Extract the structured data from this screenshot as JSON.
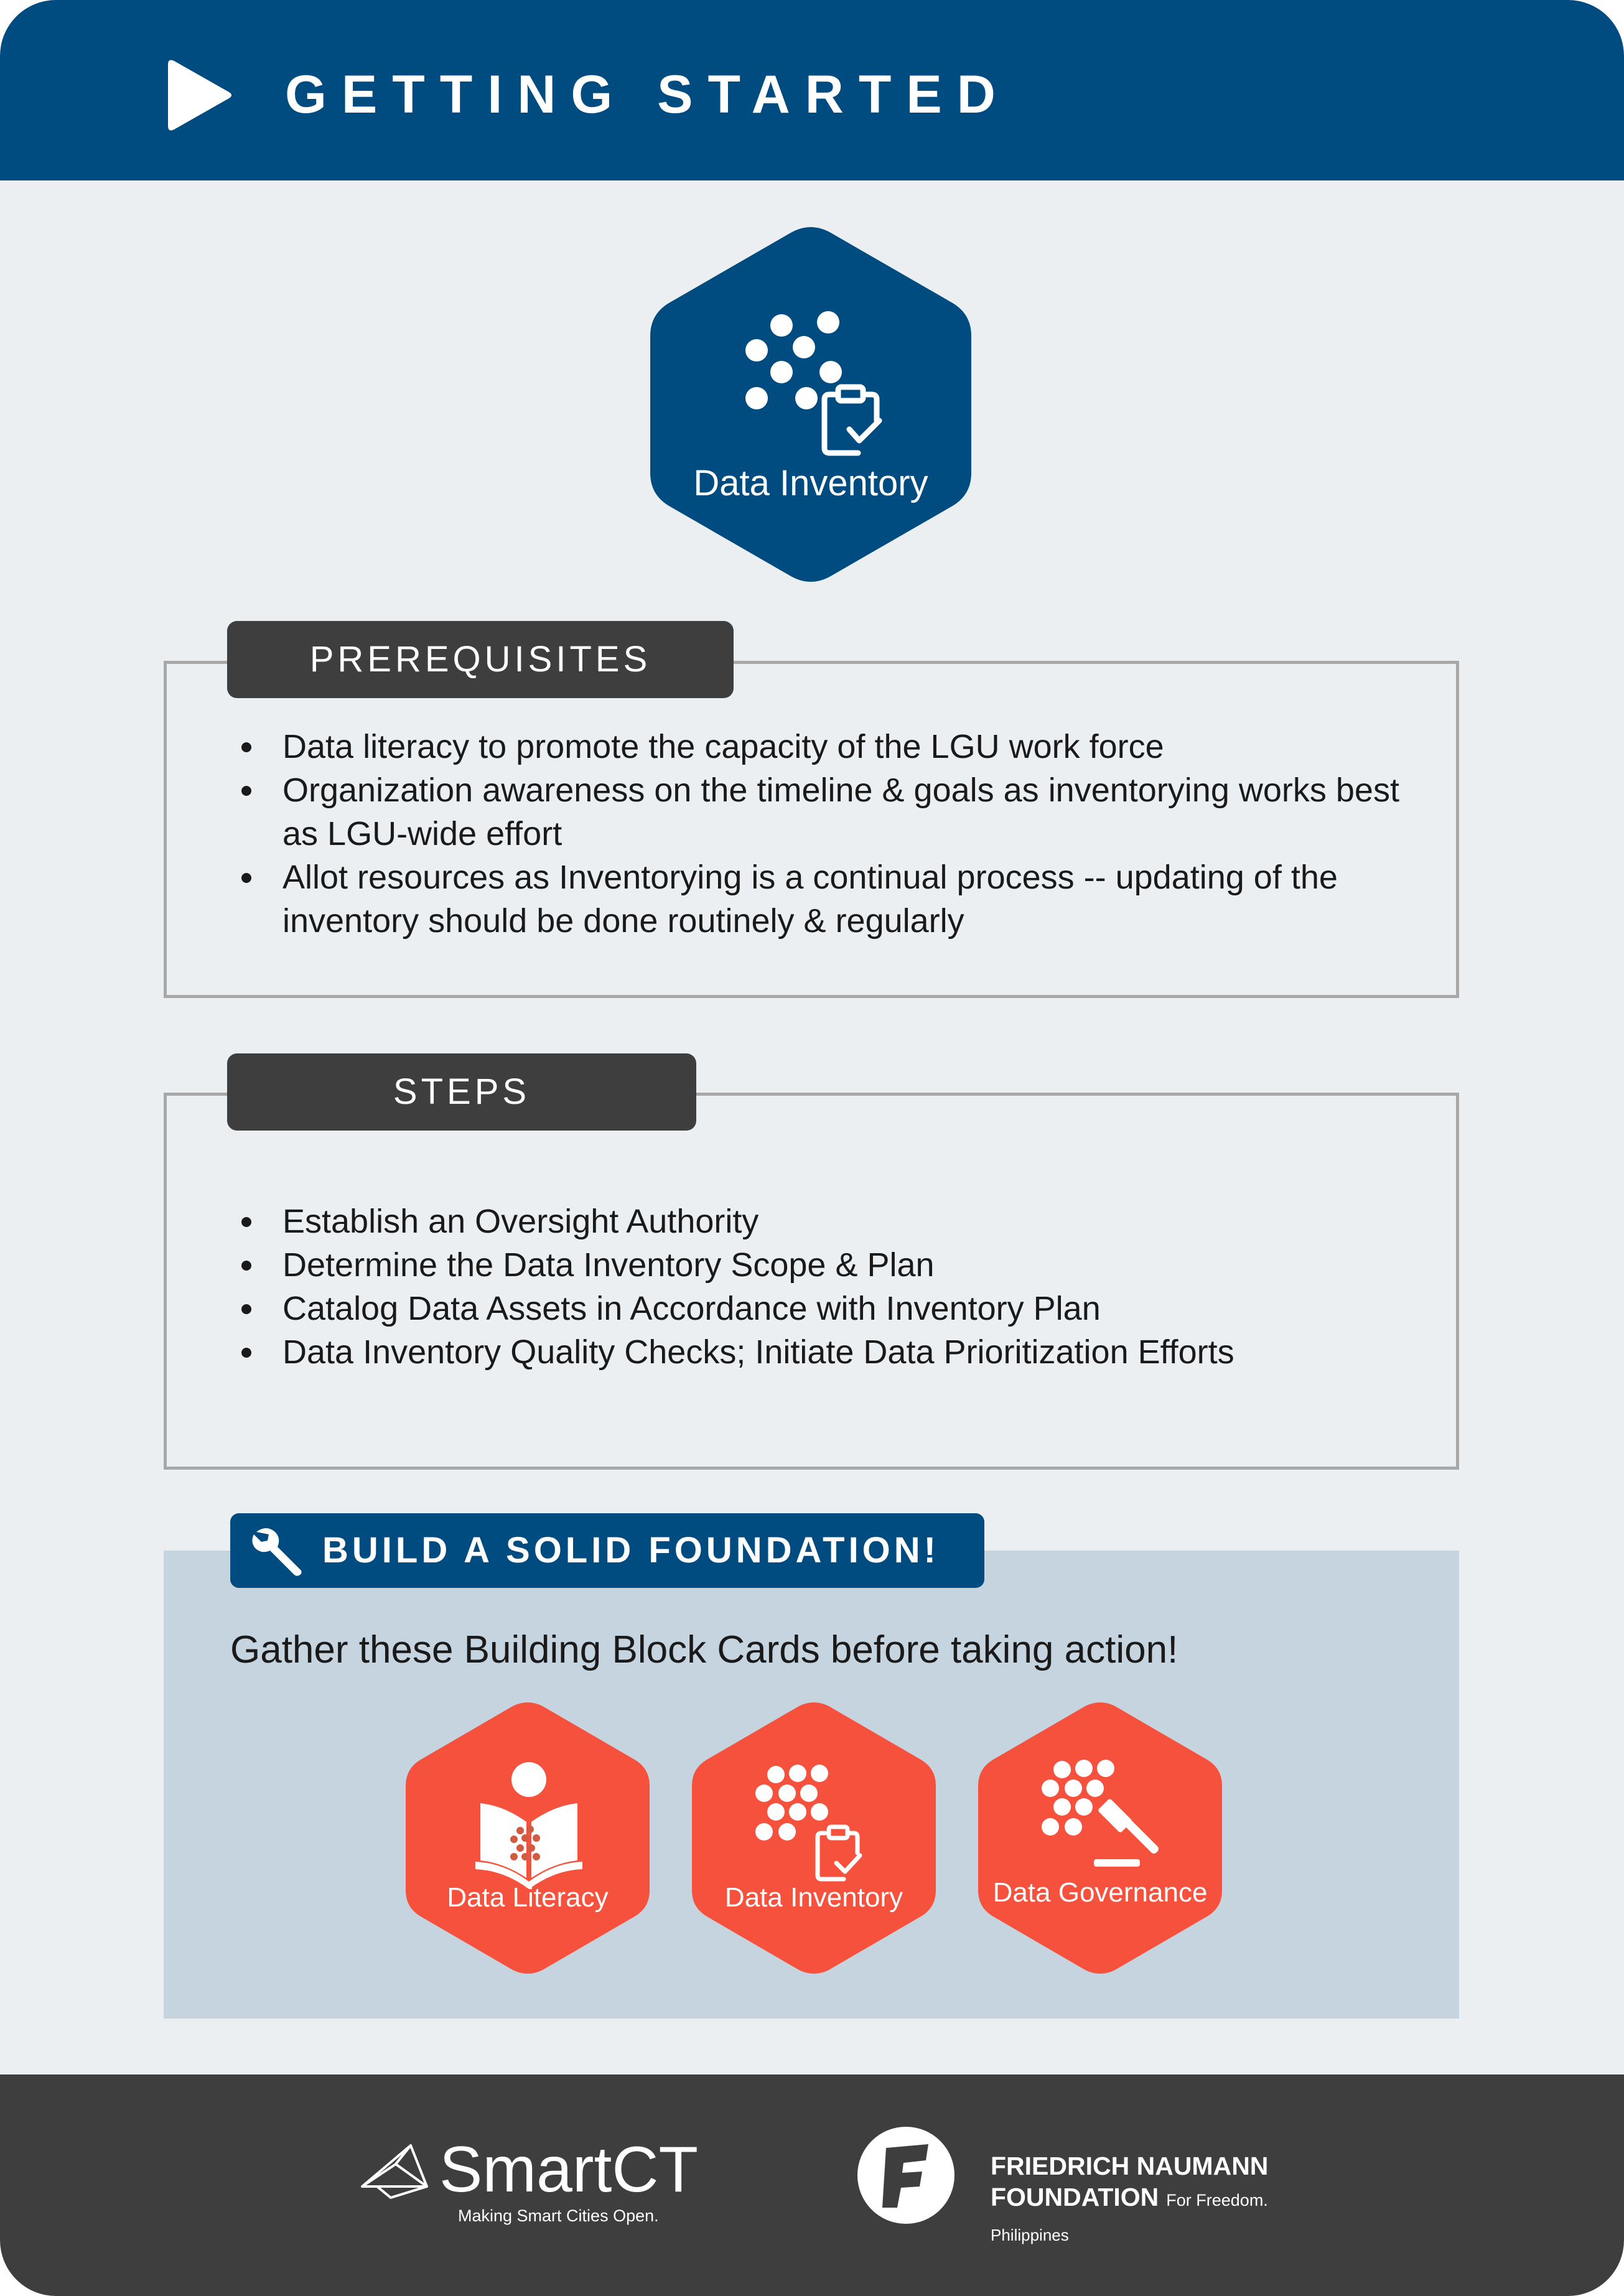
{
  "header": {
    "title": "GETTING STARTED",
    "icon": "play-icon"
  },
  "main_card": {
    "label": "Data Inventory",
    "icon": "data-inventory-icon",
    "color": "#004b80"
  },
  "prerequisites": {
    "title": "PREREQUISITES",
    "items": [
      "Data literacy to promote the capacity of the LGU work force",
      "Organization awareness on the timeline & goals as inventorying works best as LGU-wide effort",
      "Allot resources as Inventorying is a continual process -- updating of the inventory should be done routinely & regularly"
    ]
  },
  "steps": {
    "title": "STEPS",
    "items": [
      "Establish an Oversight Authority",
      "Determine the Data Inventory Scope & Plan",
      "Catalog Data Assets in Accordance with Inventory Plan",
      "Data Inventory Quality Checks; Initiate Data Prioritization Efforts"
    ]
  },
  "foundation": {
    "title": "BUILD A SOLID FOUNDATION!",
    "icon": "wrench-icon",
    "subtitle": "Gather these Building Block Cards before taking action!",
    "cards": [
      {
        "label": "Data Literacy",
        "icon": "book-icon"
      },
      {
        "label": "Data Inventory",
        "icon": "clipboard-icon"
      },
      {
        "label": "Data Governance",
        "icon": "gavel-icon"
      }
    ],
    "card_color": "#f5513d"
  },
  "footer": {
    "smartct_name": "SmartCT",
    "smartct_tagline": "Making Smart Cities Open.",
    "fnf_line1": "FRIEDRICH NAUMANN",
    "fnf_line2": "FOUNDATION",
    "fnf_tagline": "For Freedom.",
    "fnf_country": "Philippines"
  },
  "colors": {
    "primary": "#004b80",
    "accent": "#f5513d",
    "dark": "#3e3e3e",
    "background": "#eceff2"
  }
}
